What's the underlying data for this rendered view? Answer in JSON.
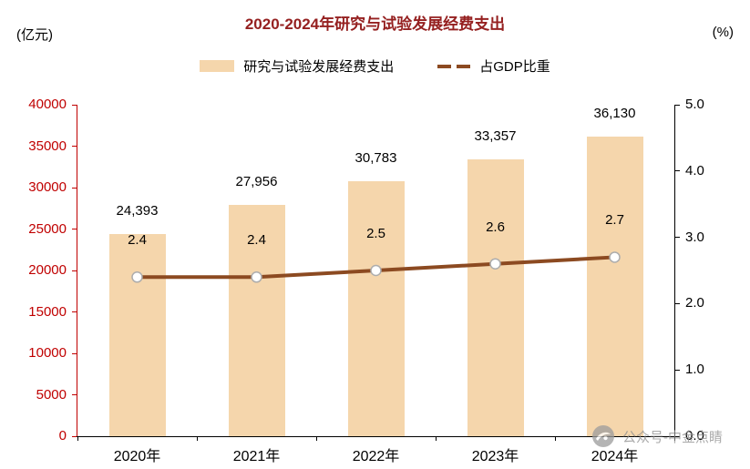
{
  "chart_data": {
    "type": "bar+line",
    "title": "2020-2024年研究与试验发展经费支出",
    "categories": [
      "2020年",
      "2021年",
      "2022年",
      "2023年",
      "2024年"
    ],
    "series": [
      {
        "name": "研究与试验发展经费支出",
        "type": "bar",
        "axis": "left",
        "values": [
          24393,
          27956,
          30783,
          33357,
          36130
        ],
        "labels": [
          "24,393",
          "27,956",
          "30,783",
          "33,357",
          "36,130"
        ],
        "color": "#F5D6AC"
      },
      {
        "name": "占GDP比重",
        "type": "line",
        "axis": "right",
        "values": [
          2.4,
          2.4,
          2.5,
          2.6,
          2.7
        ],
        "labels": [
          "2.4",
          "2.4",
          "2.5",
          "2.6",
          "2.7"
        ],
        "color": "#8C4A21"
      }
    ],
    "left_axis": {
      "unit": "(亿元)",
      "min": 0,
      "max": 40000,
      "step": 5000,
      "ticks": [
        "0",
        "5000",
        "10000",
        "15000",
        "20000",
        "25000",
        "30000",
        "35000",
        "40000"
      ],
      "color": "#C00000"
    },
    "right_axis": {
      "unit": "(%)",
      "min": 0,
      "max": 5,
      "step": 1,
      "ticks": [
        "0.0",
        "1.0",
        "2.0",
        "3.0",
        "4.0",
        "5.0"
      ],
      "color": "#000000"
    },
    "grid": false,
    "legend_position": "top"
  },
  "watermark": {
    "text": "公众号-中金点睛"
  },
  "colors": {
    "title": "#952020",
    "marker_fill": "#FFFFFF",
    "marker_stroke": "#ADADAD"
  }
}
